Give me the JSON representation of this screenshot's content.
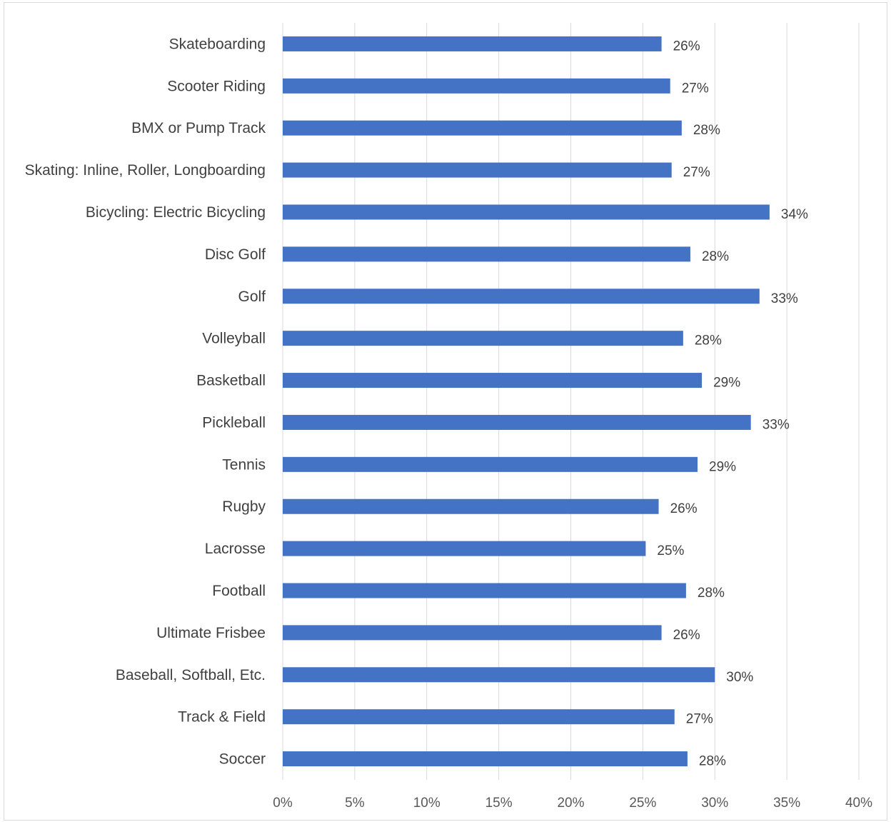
{
  "chart_data": {
    "type": "bar",
    "orientation": "horizontal",
    "categories": [
      "Skateboarding",
      "Scooter Riding",
      "BMX or Pump Track",
      "Skating: Inline, Roller, Longboarding",
      "Bicycling: Electric Bicycling",
      "Disc Golf",
      "Golf",
      "Volleyball",
      "Basketball",
      "Pickleball",
      "Tennis",
      "Rugby",
      "Lacrosse",
      "Football",
      "Ultimate Frisbee",
      "Baseball, Softball, Etc.",
      "Track & Field",
      "Soccer"
    ],
    "values": [
      26.3,
      26.9,
      27.7,
      27.0,
      33.8,
      28.3,
      33.1,
      27.8,
      29.1,
      32.5,
      28.8,
      26.1,
      25.2,
      28.0,
      26.3,
      30.0,
      27.2,
      28.1
    ],
    "data_labels": [
      "26%",
      "27%",
      "28%",
      "27%",
      "34%",
      "28%",
      "33%",
      "28%",
      "29%",
      "33%",
      "29%",
      "26%",
      "25%",
      "28%",
      "26%",
      "30%",
      "27%",
      "28%"
    ],
    "x_ticks": [
      "0%",
      "5%",
      "10%",
      "15%",
      "20%",
      "25%",
      "30%",
      "35%",
      "40%"
    ],
    "xlim": [
      0,
      40
    ],
    "x_tick_step": 5,
    "title": "",
    "xlabel": "",
    "ylabel": "",
    "grid": "vertical",
    "legend": "none",
    "bar_color": "#4472c4",
    "grid_color": "#d9d9d9"
  }
}
